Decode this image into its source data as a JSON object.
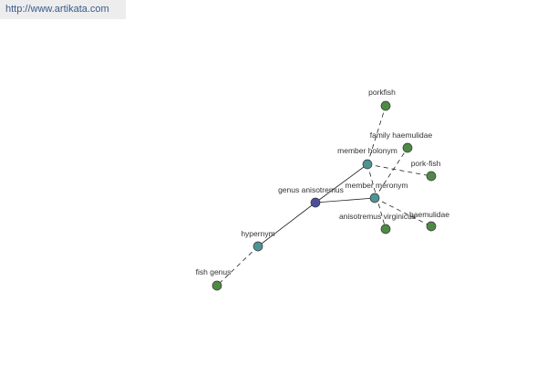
{
  "header": {
    "url": "http://www.artikata.com"
  },
  "nodes": [
    {
      "label": "genus anisotremus"
    },
    {
      "label": "member holonym"
    },
    {
      "label": "member meronym"
    },
    {
      "label": "hypernym"
    },
    {
      "label": "porkfish"
    },
    {
      "label": "family haemulidae"
    },
    {
      "label": "pork-fish"
    },
    {
      "label": "anisotremus virginicus"
    },
    {
      "label": "haemulidae"
    },
    {
      "label": "fish genus"
    }
  ]
}
